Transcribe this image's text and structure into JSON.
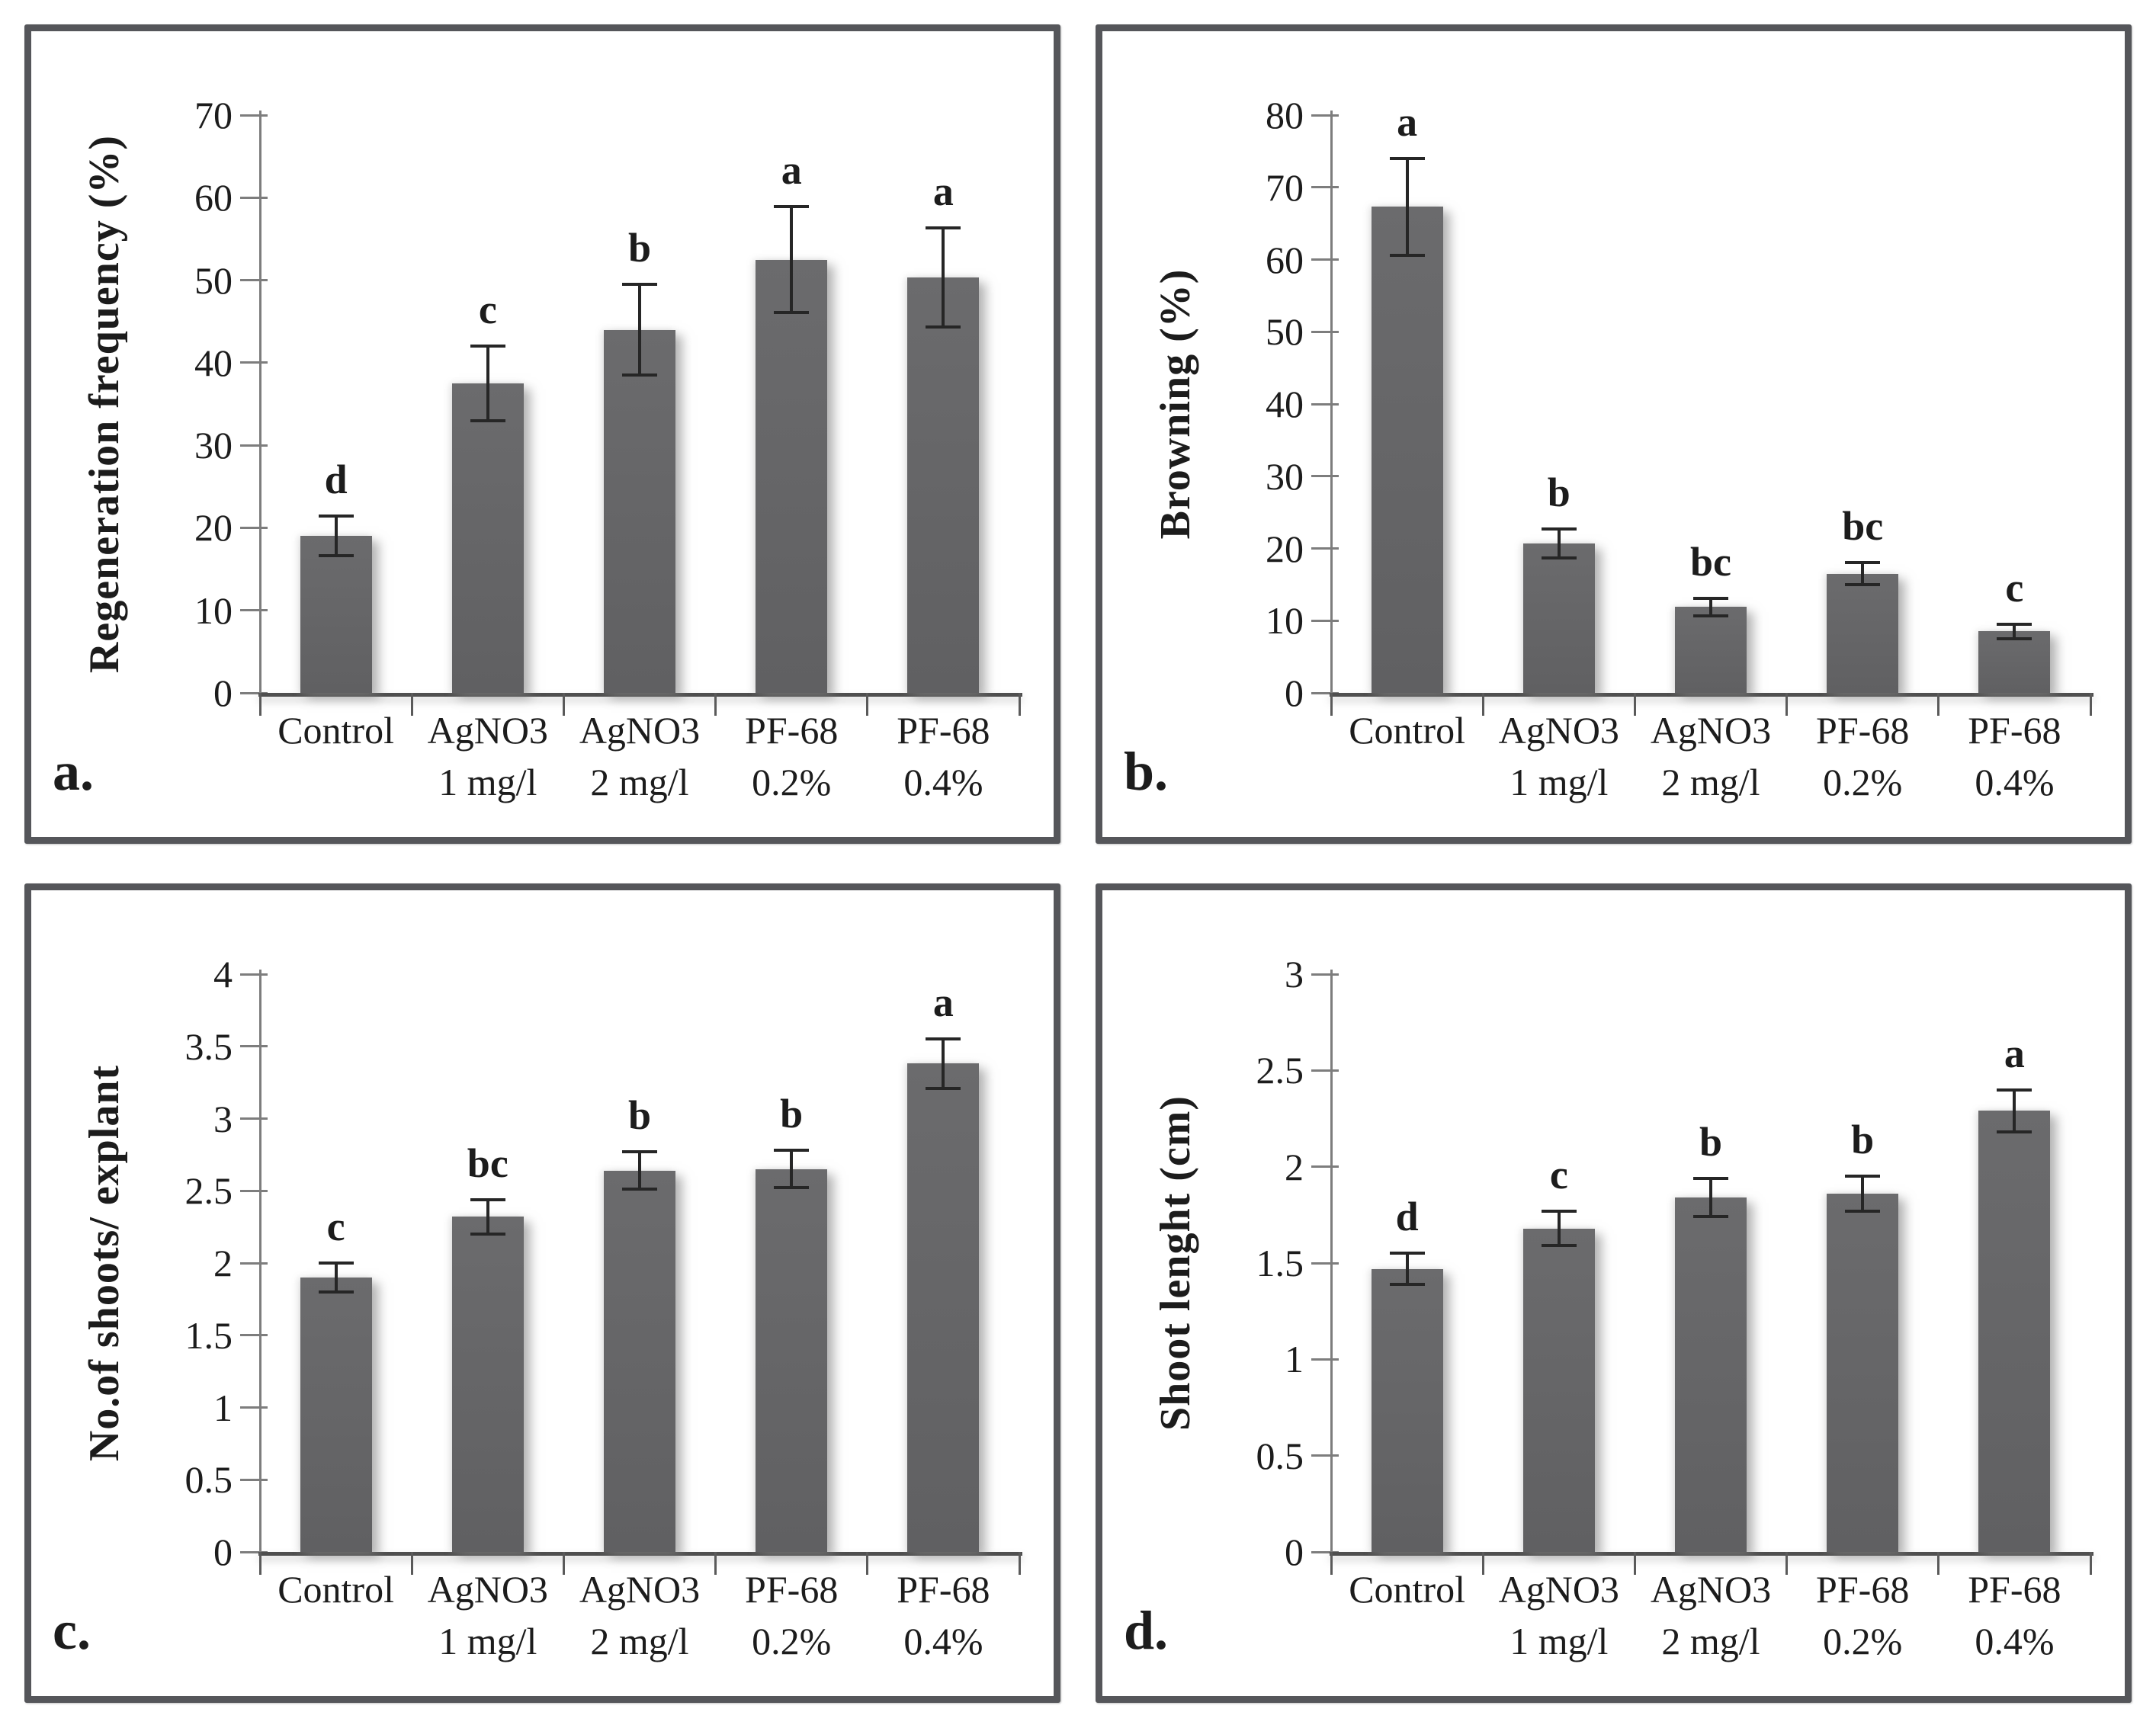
{
  "figure": {
    "background": "#ffffff",
    "panel_border_color": "#55565a",
    "bar_color": "#656567",
    "y_axis_color": "#7d7d7d",
    "x_axis_color": "#4f4f4f",
    "error_bar_color": "#262626",
    "text_color": "#1c1c1c"
  },
  "chart_data": [
    {
      "type": "bar",
      "panel_letter": "a.",
      "ylabel": "Regeneration frequency (%)",
      "xlabel": "",
      "ylim": [
        0,
        70
      ],
      "ytick_values": [
        0,
        10,
        20,
        30,
        40,
        50,
        60,
        70
      ],
      "ytick_labels": [
        "0",
        "10",
        "20",
        "30",
        "40",
        "50",
        "60",
        "70"
      ],
      "categories": [
        [
          "Control",
          ""
        ],
        [
          "AgNO3",
          "1 mg/l"
        ],
        [
          "AgNO3",
          "2 mg/l"
        ],
        [
          "PF-68",
          "0.2%"
        ],
        [
          "PF-68",
          "0.4%"
        ]
      ],
      "values": [
        19,
        37.5,
        44,
        52.5,
        50.3
      ],
      "errors": [
        2.4,
        4.5,
        5.5,
        6.4,
        6.0
      ],
      "sig_letters": [
        "d",
        "c",
        "b",
        "a",
        "a"
      ],
      "grid": false,
      "legend": "none"
    },
    {
      "type": "bar",
      "panel_letter": "b.",
      "ylabel": "Browning (%)",
      "xlabel": "",
      "ylim": [
        0,
        80
      ],
      "ytick_values": [
        0,
        10,
        20,
        30,
        40,
        50,
        60,
        70,
        80
      ],
      "ytick_labels": [
        "0",
        "10",
        "20",
        "30",
        "40",
        "50",
        "60",
        "70",
        "80"
      ],
      "categories": [
        [
          "Control",
          ""
        ],
        [
          "AgNO3",
          "1 mg/l"
        ],
        [
          "AgNO3",
          "2 mg/l"
        ],
        [
          "PF-68",
          "0.2%"
        ],
        [
          "PF-68",
          "0.4%"
        ]
      ],
      "values": [
        67.3,
        20.7,
        11.9,
        16.5,
        8.5
      ],
      "errors": [
        6.7,
        2.0,
        1.2,
        1.5,
        1.0
      ],
      "sig_letters": [
        "a",
        "b",
        "bc",
        "bc",
        "c"
      ],
      "grid": false,
      "legend": "none"
    },
    {
      "type": "bar",
      "panel_letter": "c.",
      "ylabel": "No.of shoots/ explant",
      "xlabel": "",
      "ylim": [
        0,
        4
      ],
      "ytick_values": [
        0,
        0.5,
        1,
        1.5,
        2,
        2.5,
        3,
        3.5,
        4
      ],
      "ytick_labels": [
        "0",
        "0.5",
        "1",
        "1.5",
        "2",
        "2.5",
        "3",
        "3.5",
        "4"
      ],
      "categories": [
        [
          "Control",
          ""
        ],
        [
          "AgNO3",
          "1 mg/l"
        ],
        [
          "AgNO3",
          "2 mg/l"
        ],
        [
          "PF-68",
          "0.2%"
        ],
        [
          "PF-68",
          "0.4%"
        ]
      ],
      "values": [
        1.9,
        2.32,
        2.64,
        2.65,
        3.38
      ],
      "errors": [
        0.1,
        0.12,
        0.13,
        0.13,
        0.17
      ],
      "sig_letters": [
        "c",
        "bc",
        "b",
        "b",
        "a"
      ],
      "grid": false,
      "legend": "none"
    },
    {
      "type": "bar",
      "panel_letter": "d.",
      "ylabel": "Shoot lenght (cm)",
      "xlabel": "",
      "ylim": [
        0,
        3
      ],
      "ytick_values": [
        0,
        0.5,
        1,
        1.5,
        2,
        2.5,
        3
      ],
      "ytick_labels": [
        "0",
        "0.5",
        "1",
        "1.5",
        "2",
        "2.5",
        "3"
      ],
      "categories": [
        [
          "Control",
          ""
        ],
        [
          "AgNO3",
          "1 mg/l"
        ],
        [
          "AgNO3",
          "2 mg/l"
        ],
        [
          "PF-68",
          "0.2%"
        ],
        [
          "PF-68",
          "0.4%"
        ]
      ],
      "values": [
        1.47,
        1.68,
        1.84,
        1.86,
        2.29
      ],
      "errors": [
        0.08,
        0.09,
        0.1,
        0.09,
        0.11
      ],
      "sig_letters": [
        "d",
        "c",
        "b",
        "b",
        "a"
      ],
      "grid": false,
      "legend": "none"
    }
  ]
}
